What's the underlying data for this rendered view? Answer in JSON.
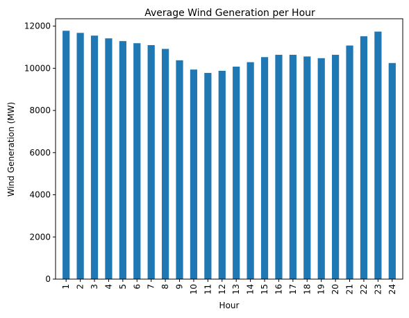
{
  "chart_data": {
    "type": "bar",
    "title": "Average Wind Generation per Hour",
    "xlabel": "Hour",
    "ylabel": "Wind Generation (MW)",
    "categories": [
      "1",
      "2",
      "3",
      "4",
      "5",
      "6",
      "7",
      "8",
      "9",
      "10",
      "11",
      "12",
      "13",
      "14",
      "15",
      "16",
      "17",
      "18",
      "19",
      "20",
      "21",
      "22",
      "23",
      "24"
    ],
    "values": [
      11780,
      11680,
      11550,
      11420,
      11290,
      11190,
      11100,
      10920,
      10380,
      9940,
      9780,
      9880,
      10080,
      10290,
      10530,
      10640,
      10640,
      10560,
      10480,
      10640,
      11080,
      11520,
      11740,
      10250
    ],
    "ylim": [
      0,
      12350
    ],
    "yticks": [
      0,
      2000,
      4000,
      6000,
      8000,
      10000,
      12000
    ],
    "bar_color": "#1f77b4",
    "grid": false,
    "legend": "none"
  }
}
